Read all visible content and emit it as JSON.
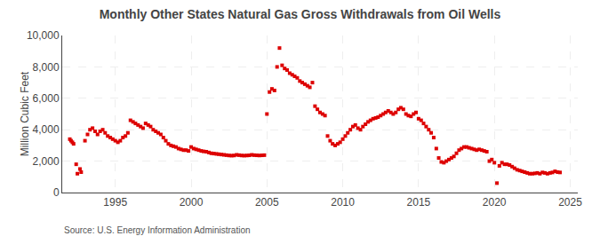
{
  "chart_data": {
    "type": "scatter",
    "title": "Monthly Other States Natural Gas Gross Withdrawals from Oil Wells",
    "ylabel": "Million Cubic Feet",
    "annotations": [
      "Source: U.S. Energy Information Administration"
    ],
    "color": "#dd0000",
    "marker": "square",
    "grid": true,
    "xlim": [
      1991.5,
      2025.5
    ],
    "xticks": [
      1995,
      2000,
      2005,
      2010,
      2015,
      2020,
      2025
    ],
    "ylim": [
      0,
      10000
    ],
    "yticks": [
      0,
      {
        "value": 2000,
        "label": "2,000"
      },
      {
        "value": 4000,
        "label": "4,000"
      },
      {
        "value": 6000,
        "label": "6,000"
      },
      {
        "value": 8000,
        "label": "8,000"
      },
      {
        "value": 10000,
        "label": "10,000"
      }
    ],
    "x": [
      1992.0,
      1992.08,
      1992.17,
      1992.25,
      1992.42,
      1992.5,
      1992.67,
      1992.75,
      1993.0,
      1993.17,
      1993.33,
      1993.5,
      1993.67,
      1993.83,
      1994.0,
      1994.17,
      1994.33,
      1994.5,
      1994.67,
      1994.83,
      1995.0,
      1995.17,
      1995.33,
      1995.5,
      1995.67,
      1995.83,
      1996.0,
      1996.17,
      1996.33,
      1996.5,
      1996.67,
      1996.83,
      1997.0,
      1997.17,
      1997.33,
      1997.5,
      1997.67,
      1997.83,
      1998.0,
      1998.17,
      1998.33,
      1998.5,
      1998.67,
      1998.83,
      1999.0,
      1999.17,
      1999.33,
      1999.5,
      1999.67,
      1999.83,
      2000.0,
      2000.17,
      2000.33,
      2000.5,
      2000.67,
      2000.83,
      2001.0,
      2001.17,
      2001.33,
      2001.5,
      2001.67,
      2001.83,
      2002.0,
      2002.17,
      2002.33,
      2002.5,
      2002.67,
      2002.83,
      2003.0,
      2003.17,
      2003.33,
      2003.5,
      2003.67,
      2003.83,
      2004.0,
      2004.17,
      2004.33,
      2004.5,
      2004.67,
      2004.83,
      2005.0,
      2005.17,
      2005.33,
      2005.5,
      2005.67,
      2005.83,
      2006.0,
      2006.17,
      2006.33,
      2006.5,
      2006.67,
      2006.83,
      2007.0,
      2007.17,
      2007.33,
      2007.5,
      2007.67,
      2007.83,
      2008.0,
      2008.17,
      2008.33,
      2008.5,
      2008.67,
      2008.83,
      2009.0,
      2009.17,
      2009.33,
      2009.5,
      2009.67,
      2009.83,
      2010.0,
      2010.17,
      2010.33,
      2010.5,
      2010.67,
      2010.83,
      2011.0,
      2011.17,
      2011.33,
      2011.5,
      2011.67,
      2011.83,
      2012.0,
      2012.17,
      2012.33,
      2012.5,
      2012.67,
      2012.83,
      2013.0,
      2013.17,
      2013.33,
      2013.5,
      2013.67,
      2013.83,
      2014.0,
      2014.17,
      2014.33,
      2014.5,
      2014.67,
      2014.83,
      2015.0,
      2015.17,
      2015.33,
      2015.5,
      2015.67,
      2015.83,
      2016.0,
      2016.17,
      2016.33,
      2016.5,
      2016.67,
      2016.83,
      2017.0,
      2017.17,
      2017.33,
      2017.5,
      2017.67,
      2017.83,
      2018.0,
      2018.17,
      2018.33,
      2018.5,
      2018.67,
      2018.83,
      2019.0,
      2019.17,
      2019.33,
      2019.5,
      2019.67,
      2019.83,
      2020.0,
      2020.17,
      2020.33,
      2020.5,
      2020.67,
      2020.83,
      2021.0,
      2021.17,
      2021.33,
      2021.5,
      2021.67,
      2021.83,
      2022.0,
      2022.17,
      2022.33,
      2022.5,
      2022.67,
      2022.83,
      2023.0,
      2023.17,
      2023.33,
      2023.5,
      2023.67,
      2023.83,
      2024.0,
      2024.17,
      2024.33
    ],
    "values": [
      3400,
      3300,
      3200,
      3100,
      1800,
      1200,
      1500,
      1300,
      3300,
      3700,
      4000,
      4100,
      3900,
      3700,
      3900,
      4000,
      3800,
      3600,
      3500,
      3400,
      3300,
      3200,
      3300,
      3500,
      3600,
      3800,
      4600,
      4500,
      4400,
      4300,
      4200,
      4100,
      4400,
      4300,
      4200,
      4000,
      3900,
      3800,
      3700,
      3500,
      3300,
      3100,
      3000,
      2950,
      2900,
      2800,
      2750,
      2700,
      2700,
      2650,
      2900,
      2800,
      2750,
      2700,
      2650,
      2620,
      2600,
      2550,
      2500,
      2480,
      2460,
      2440,
      2420,
      2400,
      2380,
      2360,
      2350,
      2360,
      2400,
      2380,
      2360,
      2350,
      2360,
      2370,
      2400,
      2380,
      2370,
      2360,
      2370,
      2380,
      5000,
      6400,
      6600,
      6500,
      8000,
      9200,
      8100,
      7900,
      7800,
      7600,
      7500,
      7400,
      7300,
      7100,
      7000,
      6900,
      6800,
      6700,
      7000,
      5500,
      5300,
      5100,
      5000,
      4900,
      3600,
      3300,
      3100,
      3000,
      3100,
      3200,
      3400,
      3600,
      3800,
      4000,
      4200,
      4300,
      4100,
      4000,
      4200,
      4350,
      4500,
      4600,
      4700,
      4750,
      4800,
      4900,
      5000,
      5100,
      5200,
      5100,
      5000,
      5100,
      5300,
      5400,
      5300,
      5000,
      4900,
      4850,
      5000,
      5100,
      4700,
      4600,
      4400,
      4200,
      4000,
      3800,
      3500,
      2800,
      2200,
      1950,
      1900,
      2000,
      2100,
      2200,
      2300,
      2500,
      2700,
      2800,
      2900,
      2900,
      2850,
      2800,
      2750,
      2700,
      2750,
      2700,
      2650,
      2600,
      2000,
      2100,
      1900,
      600,
      1700,
      1900,
      1800,
      1800,
      1750,
      1650,
      1550,
      1450,
      1400,
      1350,
      1300,
      1250,
      1200,
      1200,
      1220,
      1250,
      1200,
      1280,
      1250,
      1200,
      1250,
      1280,
      1350,
      1300,
      1280
    ]
  }
}
